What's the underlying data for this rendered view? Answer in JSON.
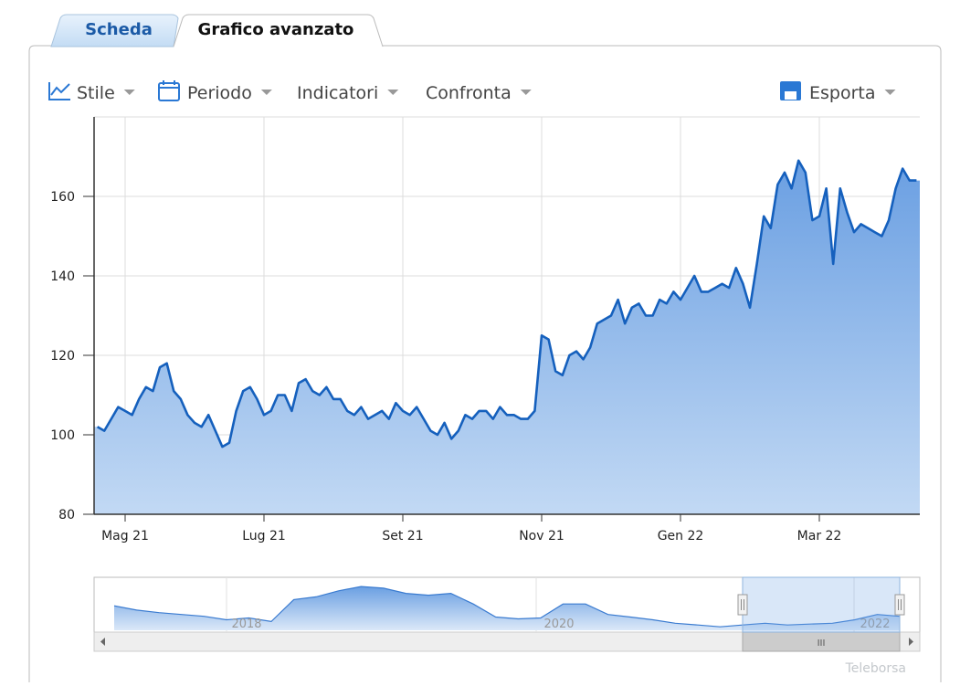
{
  "tabs": [
    "Scheda",
    "Grafico avanzato"
  ],
  "toolbar": [
    "Stile",
    "Periodo",
    "Indicatori",
    "Confronta",
    "Esporta"
  ],
  "chart_data": {
    "type": "area",
    "color": "#1560bd",
    "grid": true,
    "ylim": [
      80,
      180
    ],
    "yticks": [
      80,
      100,
      120,
      140,
      160
    ],
    "categories": [
      null,
      null,
      null,
      null,
      "Mag 21",
      null,
      null,
      null,
      null,
      null,
      null,
      null,
      null,
      null,
      null,
      null,
      null,
      null,
      null,
      null,
      null,
      null,
      null,
      null,
      "Lug 21",
      null,
      null,
      null,
      null,
      null,
      null,
      null,
      null,
      null,
      null,
      null,
      null,
      null,
      null,
      null,
      null,
      null,
      null,
      null,
      "Set 21",
      null,
      null,
      null,
      null,
      null,
      null,
      null,
      null,
      null,
      null,
      null,
      null,
      null,
      null,
      null,
      null,
      null,
      null,
      null,
      "Nov 21",
      null,
      null,
      null,
      null,
      null,
      null,
      null,
      null,
      null,
      null,
      null,
      null,
      null,
      null,
      null,
      null,
      null,
      null,
      null,
      "Gen 22",
      null,
      null,
      null,
      null,
      null,
      null,
      null,
      null,
      null,
      null,
      null,
      null,
      null,
      null,
      null,
      null,
      null,
      null,
      null,
      "Mar 22",
      null,
      null,
      null,
      null,
      null,
      null,
      null,
      null,
      null,
      null,
      null,
      null,
      null,
      null
    ],
    "values": [
      102,
      101,
      104,
      107,
      106,
      105,
      109,
      112,
      111,
      117,
      118,
      111,
      109,
      105,
      103,
      102,
      105,
      101,
      97,
      98,
      106,
      111,
      112,
      109,
      105,
      106,
      110,
      110,
      106,
      113,
      114,
      111,
      110,
      112,
      109,
      109,
      106,
      105,
      107,
      104,
      105,
      106,
      104,
      108,
      106,
      105,
      107,
      104,
      101,
      100,
      103,
      99,
      101,
      105,
      104,
      106,
      106,
      104,
      107,
      105,
      105,
      104,
      104,
      106,
      125,
      124,
      116,
      115,
      120,
      121,
      119,
      122,
      128,
      129,
      130,
      134,
      128,
      132,
      133,
      130,
      130,
      134,
      133,
      136,
      134,
      137,
      140,
      136,
      136,
      137,
      138,
      137,
      142,
      138,
      132,
      143,
      155,
      152,
      163,
      166,
      162,
      169,
      166,
      154,
      155,
      162,
      143,
      162,
      156,
      151,
      153,
      152,
      151,
      150,
      154,
      162,
      167,
      164,
      164
    ]
  },
  "navigator": {
    "ylim": [
      60,
      400
    ],
    "values": [
      223,
      194,
      177,
      165,
      153,
      130,
      142,
      118,
      264,
      282,
      322,
      351,
      340,
      305,
      293,
      305,
      235,
      148,
      136,
      142,
      235,
      235,
      165,
      148,
      130,
      107,
      95,
      83,
      95,
      107,
      95,
      101,
      107,
      130,
      165,
      153
    ],
    "labels": [
      "2018",
      "2020",
      "2022"
    ]
  },
  "credit": "Teleborsa"
}
